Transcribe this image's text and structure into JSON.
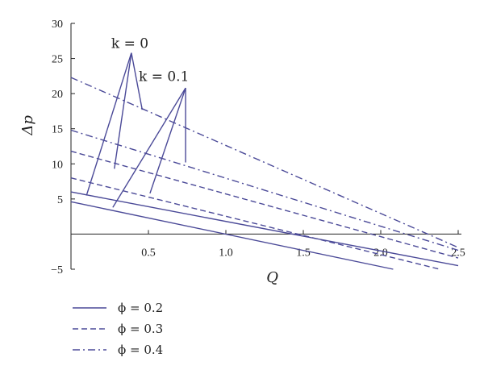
{
  "chart_data": {
    "type": "line",
    "title": "",
    "xlabel": "Q",
    "ylabel": "Δp",
    "xlim": [
      0,
      2.5
    ],
    "ylim": [
      -5,
      30
    ],
    "xticks": [
      {
        "value": 0.5,
        "label": "0.5"
      },
      {
        "value": 1.0,
        "label": "1.0"
      },
      {
        "value": 1.5,
        "label": "1.5"
      },
      {
        "value": 2.0,
        "label": "2.0"
      },
      {
        "value": 2.5,
        "label": "2.5"
      }
    ],
    "yticks": [
      {
        "value": -5,
        "label": "−5"
      },
      {
        "value": 5,
        "label": "5"
      },
      {
        "value": 10,
        "label": "10"
      },
      {
        "value": 15,
        "label": "15"
      },
      {
        "value": 20,
        "label": "20"
      },
      {
        "value": 25,
        "label": "25"
      },
      {
        "value": 30,
        "label": "30"
      }
    ],
    "grid": false,
    "legend_position": "bottom-left",
    "annotations": [
      {
        "text": "k = 0",
        "x": 0.38,
        "y": 26.5
      },
      {
        "text": "k = 0.1",
        "x": 0.6,
        "y": 21.8
      }
    ],
    "pointers": [
      {
        "group": "k = 0",
        "apex": [
          0.39,
          25.8
        ],
        "targets": [
          [
            0.1,
            5.5
          ],
          [
            0.28,
            9.3
          ],
          [
            0.46,
            17.7
          ]
        ]
      },
      {
        "group": "k = 0.1",
        "apex": [
          0.74,
          20.8
        ],
        "targets": [
          [
            0.27,
            3.8
          ],
          [
            0.51,
            5.8
          ],
          [
            0.74,
            10.2
          ]
        ]
      }
    ],
    "series": [
      {
        "name": "ϕ = 0.2",
        "style": "solid",
        "lines": [
          {
            "x": [
              0,
              2.08
            ],
            "y": [
              4.6,
              -5.0
            ]
          },
          {
            "x": [
              0,
              2.5
            ],
            "y": [
              6.0,
              -4.5
            ]
          }
        ]
      },
      {
        "name": "ϕ = 0.3",
        "style": "dashed",
        "lines": [
          {
            "x": [
              0,
              2.38
            ],
            "y": [
              8.0,
              -5.0
            ]
          },
          {
            "x": [
              0,
              2.5
            ],
            "y": [
              11.8,
              -3.4
            ]
          }
        ]
      },
      {
        "name": "ϕ = 0.4",
        "style": "dashdot",
        "lines": [
          {
            "x": [
              0,
              2.5
            ],
            "y": [
              14.8,
              -2.3
            ]
          },
          {
            "x": [
              0,
              2.5
            ],
            "y": [
              22.3,
              -1.9
            ]
          }
        ]
      }
    ],
    "legend": [
      {
        "label": "ϕ = 0.2",
        "style": "solid"
      },
      {
        "label": "ϕ = 0.3",
        "style": "dashed"
      },
      {
        "label": "ϕ = 0.4",
        "style": "dashdot"
      }
    ]
  }
}
